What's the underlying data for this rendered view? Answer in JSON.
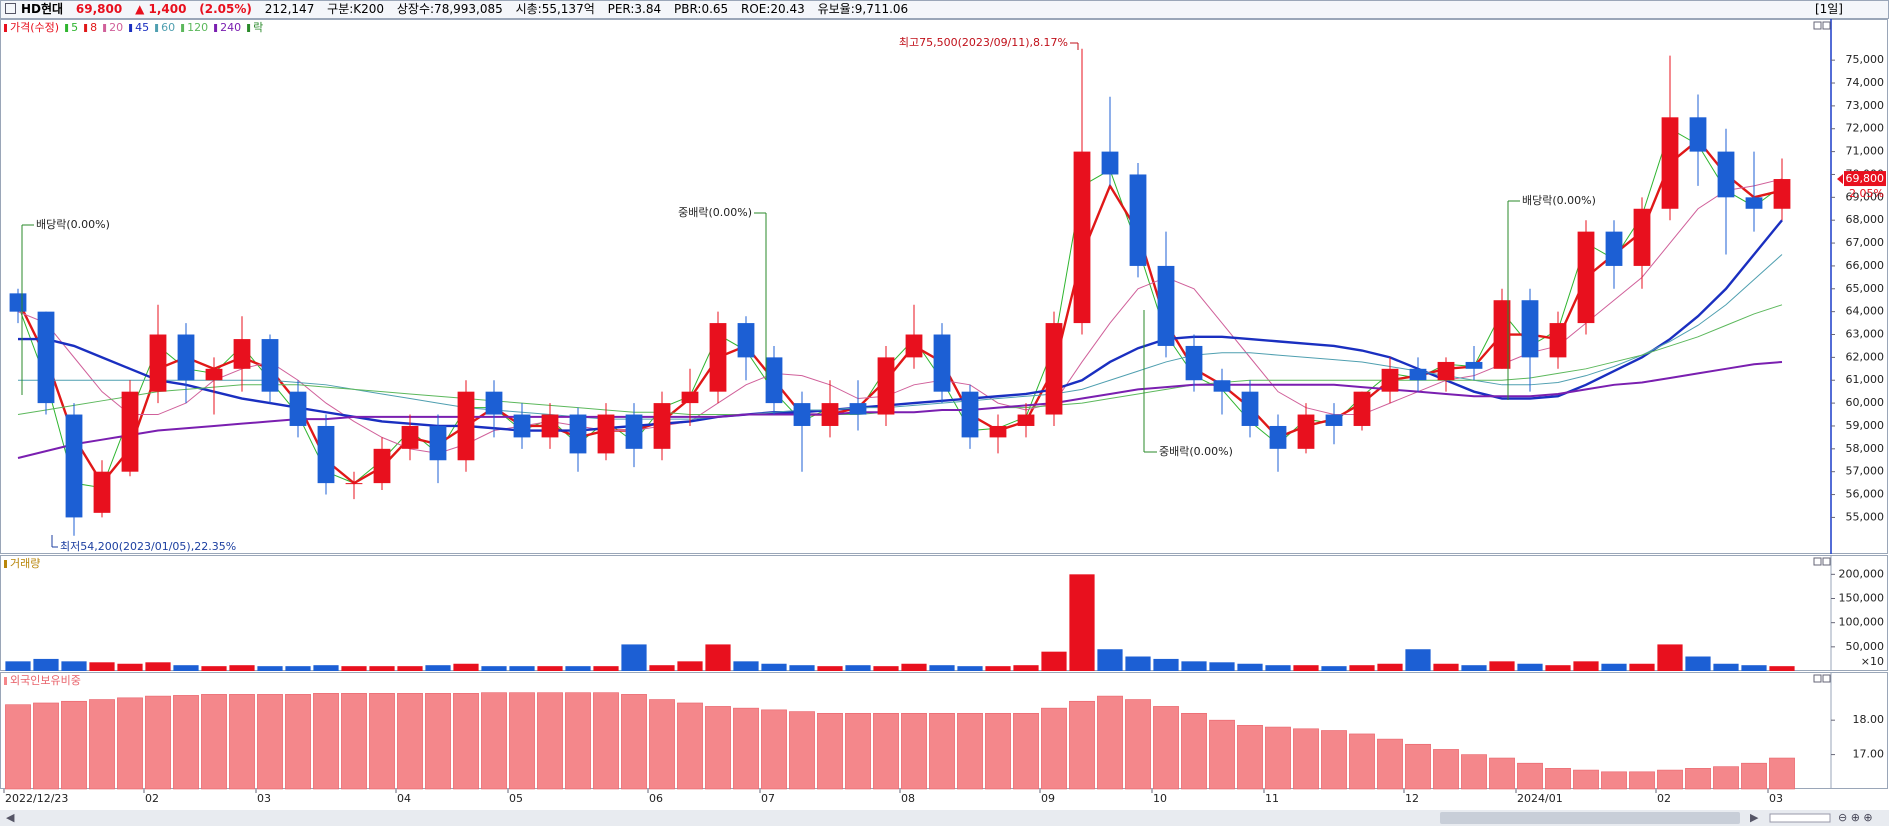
{
  "header": {
    "name": "HD현대",
    "price": "69,800",
    "change": "▲ 1,400",
    "change_pct": "(2.05%)",
    "volume": "212,147",
    "group": "구분:K200",
    "listed": "상장수:78,993,085",
    "market_cap": "시총:55,137억",
    "per": "PER:3.84",
    "pbr": "PBR:0.65",
    "roe": "ROE:20.43",
    "reserve": "유보율:9,711.06",
    "period": "[1일]"
  },
  "chart_data": [
    {
      "type": "candlestick",
      "name": "가격(수정)",
      "up_color": "#e8101e",
      "down_color": "#1c5fd4",
      "ex_marker_label": "락",
      "last_price_label": "69,800",
      "last_change_label": "2.05%",
      "open": [
        64800,
        64000,
        59500,
        55200,
        57000,
        60500,
        63000,
        61000,
        61500,
        62800,
        60500,
        59000,
        56500,
        56500,
        58000,
        59000,
        57500,
        60500,
        59500,
        58500,
        59500,
        57800,
        59500,
        58000,
        60000,
        60500,
        63500,
        62000,
        60000,
        59000,
        60000,
        59500,
        62000,
        63000,
        60500,
        58500,
        59000,
        59500,
        63500,
        71000,
        70000,
        66000,
        62500,
        61000,
        60500,
        59000,
        58000,
        59500,
        59000,
        60500,
        61500,
        61000,
        61800,
        61500,
        64500,
        62000,
        63500,
        67500,
        66000,
        68500,
        72500,
        71000,
        69000,
        68500
      ],
      "high": [
        65000,
        64000,
        60000,
        57500,
        61000,
        64300,
        63500,
        62000,
        63800,
        63000,
        61000,
        59500,
        57000,
        58500,
        59500,
        59500,
        61000,
        61000,
        60000,
        60000,
        59800,
        60000,
        60000,
        60500,
        61500,
        64000,
        63800,
        62500,
        60500,
        61000,
        61000,
        62500,
        64300,
        63500,
        60800,
        59500,
        60000,
        64000,
        75500,
        73400,
        70500,
        67500,
        63000,
        61500,
        61000,
        59500,
        60000,
        60000,
        60500,
        62000,
        62000,
        62000,
        62500,
        65000,
        65000,
        64000,
        68000,
        68000,
        69000,
        75200,
        73500,
        72000,
        71000,
        70700
      ],
      "low": [
        63500,
        59500,
        54200,
        55000,
        56800,
        60000,
        60000,
        59500,
        60500,
        60000,
        58500,
        56000,
        55800,
        56200,
        57500,
        56500,
        57000,
        58500,
        58000,
        58000,
        57000,
        57500,
        57200,
        57500,
        59000,
        60000,
        61000,
        59500,
        57000,
        58500,
        58800,
        59000,
        61500,
        60000,
        58000,
        57800,
        58500,
        59000,
        63000,
        69500,
        65500,
        62000,
        60500,
        59500,
        58500,
        57000,
        57800,
        58200,
        58800,
        60000,
        60500,
        60500,
        61000,
        61500,
        60500,
        61500,
        63000,
        65000,
        65000,
        68000,
        69500,
        66500,
        67500,
        68000
      ],
      "close": [
        64000,
        60000,
        55000,
        57000,
        60500,
        63000,
        61000,
        61500,
        62800,
        60500,
        59000,
        56500,
        56500,
        58000,
        59000,
        57500,
        60500,
        59500,
        58500,
        59500,
        57800,
        59500,
        58000,
        60000,
        60500,
        63500,
        62000,
        60000,
        59000,
        60000,
        59500,
        62000,
        63000,
        60500,
        58500,
        59000,
        59500,
        63500,
        71000,
        70000,
        66000,
        62500,
        61000,
        60500,
        59000,
        58000,
        59500,
        59000,
        60500,
        61500,
        61000,
        61800,
        61500,
        64500,
        62000,
        63500,
        67500,
        66000,
        68500,
        72500,
        71000,
        69000,
        68500,
        69800
      ],
      "series": [
        {
          "name": "5",
          "color": "#2fb52f",
          "width": 1,
          "values": [
            64300,
            61000,
            56500,
            56300,
            59500,
            62500,
            61500,
            61300,
            62500,
            61000,
            59500,
            57000,
            56500,
            57500,
            58800,
            57800,
            59800,
            59800,
            58800,
            59300,
            58200,
            59200,
            58300,
            59800,
            60300,
            63000,
            62300,
            60500,
            59200,
            59800,
            59600,
            61500,
            62800,
            61000,
            58800,
            58900,
            59400,
            62500,
            69500,
            70200,
            66800,
            63000,
            61200,
            60600,
            59200,
            58200,
            59300,
            59100,
            60300,
            61300,
            61100,
            61700,
            61600,
            64000,
            62500,
            63200,
            67000,
            66300,
            68200,
            72000,
            71300,
            69300,
            68600,
            69500
          ]
        },
        {
          "name": "8",
          "color": "#e01818",
          "width": 2.4,
          "values": [
            64500,
            62000,
            58500,
            56500,
            58000,
            61500,
            62000,
            61500,
            62000,
            61500,
            60000,
            57500,
            56500,
            57200,
            58500,
            58200,
            59000,
            59800,
            59000,
            59000,
            58500,
            58800,
            58800,
            59200,
            60200,
            62000,
            62500,
            61000,
            59500,
            59500,
            59800,
            61000,
            62500,
            61800,
            59500,
            58800,
            59200,
            61500,
            66500,
            69500,
            67500,
            63500,
            61500,
            60800,
            59800,
            58500,
            59000,
            59300,
            60000,
            61000,
            61200,
            61500,
            61600,
            63000,
            63000,
            62800,
            65500,
            66500,
            67500,
            70500,
            71500,
            70000,
            69000,
            69300
          ]
        },
        {
          "name": "20",
          "color": "#d0609a",
          "width": 1,
          "values": [
            64000,
            63500,
            62000,
            60500,
            59500,
            59500,
            60000,
            61000,
            61500,
            61800,
            61000,
            60000,
            59200,
            58500,
            58000,
            57800,
            58200,
            58800,
            59000,
            59200,
            59000,
            58800,
            58800,
            59000,
            59200,
            60000,
            60800,
            61300,
            61200,
            60800,
            60200,
            60300,
            60800,
            61000,
            60800,
            60000,
            59700,
            60000,
            61800,
            63500,
            65000,
            65500,
            65000,
            63500,
            62000,
            60500,
            59800,
            59500,
            59500,
            60000,
            60500,
            61000,
            61200,
            61700,
            62200,
            62500,
            63500,
            64500,
            65500,
            67000,
            68500,
            69300,
            69500,
            69800
          ]
        },
        {
          "name": "45",
          "color": "#1a2fc0",
          "width": 2.4,
          "values": [
            62800,
            62800,
            62500,
            62000,
            61500,
            61000,
            60800,
            60500,
            60200,
            60000,
            59800,
            59600,
            59400,
            59200,
            59100,
            59000,
            59000,
            58900,
            58800,
            58800,
            58800,
            58900,
            59000,
            59100,
            59200,
            59400,
            59500,
            59600,
            59600,
            59700,
            59800,
            59900,
            60000,
            60100,
            60200,
            60300,
            60400,
            60600,
            61000,
            61800,
            62400,
            62800,
            62900,
            62900,
            62800,
            62700,
            62600,
            62500,
            62300,
            62000,
            61500,
            61000,
            60500,
            60200,
            60200,
            60300,
            60800,
            61400,
            62000,
            62800,
            63800,
            65000,
            66500,
            68000
          ]
        },
        {
          "name": "60",
          "color": "#4f9fb0",
          "width": 1,
          "values": [
            61000,
            61000,
            61000,
            61000,
            61000,
            61000,
            61000,
            61000,
            61000,
            61000,
            60900,
            60800,
            60600,
            60400,
            60200,
            60000,
            59800,
            59700,
            59600,
            59500,
            59400,
            59300,
            59300,
            59300,
            59300,
            59400,
            59500,
            59600,
            59700,
            59700,
            59800,
            59800,
            59900,
            60000,
            60100,
            60200,
            60300,
            60400,
            60600,
            61000,
            61400,
            61800,
            62100,
            62200,
            62200,
            62100,
            62000,
            61900,
            61800,
            61600,
            61400,
            61200,
            61000,
            60800,
            60800,
            60900,
            61200,
            61600,
            62100,
            62700,
            63400,
            64300,
            65400,
            66500
          ]
        },
        {
          "name": "120",
          "color": "#5cb85c",
          "width": 1,
          "values": [
            59500,
            59700,
            59900,
            60100,
            60300,
            60500,
            60600,
            60700,
            60800,
            60800,
            60800,
            60700,
            60600,
            60500,
            60400,
            60300,
            60200,
            60100,
            60000,
            59900,
            59800,
            59700,
            59600,
            59600,
            59500,
            59500,
            59500,
            59500,
            59500,
            59500,
            59500,
            59600,
            59600,
            59700,
            59700,
            59800,
            59800,
            59900,
            60000,
            60200,
            60400,
            60600,
            60800,
            60900,
            61000,
            61000,
            61000,
            61000,
            61000,
            61000,
            61000,
            61000,
            61000,
            61000,
            61100,
            61300,
            61500,
            61800,
            62100,
            62500,
            62900,
            63400,
            63900,
            64300
          ]
        },
        {
          "name": "240",
          "color": "#7a1fb0",
          "width": 2,
          "values": [
            57600,
            57900,
            58200,
            58400,
            58600,
            58800,
            58900,
            59000,
            59100,
            59200,
            59300,
            59300,
            59400,
            59400,
            59400,
            59400,
            59400,
            59400,
            59400,
            59400,
            59400,
            59400,
            59400,
            59400,
            59400,
            59400,
            59500,
            59500,
            59500,
            59500,
            59600,
            59600,
            59600,
            59700,
            59700,
            59800,
            59900,
            60000,
            60200,
            60400,
            60600,
            60700,
            60800,
            60800,
            60800,
            60800,
            60800,
            60800,
            60700,
            60600,
            60500,
            60400,
            60300,
            60300,
            60300,
            60400,
            60600,
            60800,
            60900,
            61100,
            61300,
            61500,
            61700,
            61800
          ]
        }
      ],
      "annotations": [
        "최고75,500(2023/09/11),8.17%",
        "최저54,200(2023/01/05),22.35%",
        "배당락(0.00%)",
        "중배락(0.00%)",
        "중배락(0.00%)",
        "배당락(0.00%)"
      ],
      "ylim": [
        53400,
        76800
      ],
      "yticks": [
        {
          "value": 55000,
          "label": "55,000"
        },
        {
          "value": 56000,
          "label": "56,000"
        },
        {
          "value": 57000,
          "label": "57,000"
        },
        {
          "value": 58000,
          "label": "58,000"
        },
        {
          "value": 59000,
          "label": "59,000"
        },
        {
          "value": 60000,
          "label": "60,000"
        },
        {
          "value": 61000,
          "label": "61,000"
        },
        {
          "value": 62000,
          "label": "62,000"
        },
        {
          "value": 63000,
          "label": "63,000"
        },
        {
          "value": 64000,
          "label": "64,000"
        },
        {
          "value": 65000,
          "label": "65,000"
        },
        {
          "value": 66000,
          "label": "66,000"
        },
        {
          "value": 67000,
          "label": "67,000"
        },
        {
          "value": 68000,
          "label": "68,000"
        },
        {
          "value": 69000,
          "label": "69,000"
        },
        {
          "value": 70000,
          "label": "70,000"
        },
        {
          "value": 71000,
          "label": "71,000"
        },
        {
          "value": 72000,
          "label": "72,000"
        },
        {
          "value": 73000,
          "label": "73,000"
        },
        {
          "value": 74000,
          "label": "74,000"
        },
        {
          "value": 75000,
          "label": "75,000"
        }
      ]
    },
    {
      "type": "bar",
      "title": "거래량",
      "unit_label": "×10",
      "values": [
        20000,
        25000,
        20000,
        18000,
        15000,
        18000,
        12000,
        10000,
        12000,
        10000,
        10000,
        12000,
        10000,
        10000,
        10000,
        12000,
        15000,
        10000,
        10000,
        10000,
        10000,
        10000,
        55000,
        12000,
        20000,
        55000,
        20000,
        15000,
        12000,
        10000,
        12000,
        10000,
        15000,
        12000,
        10000,
        10000,
        12000,
        40000,
        200000,
        45000,
        30000,
        25000,
        20000,
        18000,
        15000,
        12000,
        12000,
        10000,
        12000,
        15000,
        45000,
        15000,
        12000,
        20000,
        15000,
        12000,
        20000,
        15000,
        15000,
        55000,
        30000,
        15000,
        12000,
        10000
      ],
      "ylim": [
        0,
        240000
      ],
      "yticks": [
        {
          "value": 50000,
          "label": "50,000"
        },
        {
          "value": 100000,
          "label": "100,000"
        },
        {
          "value": 150000,
          "label": "150,000"
        },
        {
          "value": 200000,
          "label": "200,000"
        }
      ]
    },
    {
      "type": "bar",
      "title": "외국인보유비중",
      "color": "#f4878b",
      "categories": [
        "2022/12/23",
        null,
        null,
        null,
        null,
        "02",
        null,
        null,
        null,
        "03",
        null,
        null,
        null,
        null,
        "04",
        null,
        null,
        null,
        "05",
        null,
        null,
        null,
        null,
        "06",
        null,
        null,
        null,
        "07",
        null,
        null,
        null,
        null,
        "08",
        null,
        null,
        null,
        null,
        "09",
        null,
        null,
        null,
        "10",
        null,
        null,
        null,
        "11",
        null,
        null,
        null,
        null,
        "12",
        null,
        null,
        null,
        "2024/01",
        null,
        null,
        null,
        null,
        "02",
        null,
        null,
        null,
        "03"
      ],
      "values": [
        18.45,
        18.5,
        18.55,
        18.6,
        18.65,
        18.7,
        18.72,
        18.75,
        18.75,
        18.75,
        18.75,
        18.78,
        18.78,
        18.78,
        18.78,
        18.78,
        18.78,
        18.8,
        18.8,
        18.8,
        18.8,
        18.8,
        18.75,
        18.6,
        18.5,
        18.4,
        18.35,
        18.3,
        18.25,
        18.2,
        18.2,
        18.2,
        18.2,
        18.2,
        18.2,
        18.2,
        18.2,
        18.35,
        18.55,
        18.7,
        18.6,
        18.4,
        18.2,
        18.0,
        17.85,
        17.8,
        17.75,
        17.7,
        17.6,
        17.45,
        17.3,
        17.15,
        17.0,
        16.9,
        16.75,
        16.6,
        16.55,
        16.5,
        16.5,
        16.55,
        16.6,
        16.65,
        16.75,
        16.9
      ],
      "ylim": [
        16,
        19.4
      ],
      "yticks": [
        {
          "value": 17,
          "label": "17.00"
        },
        {
          "value": 18,
          "label": "18.00"
        }
      ]
    }
  ]
}
